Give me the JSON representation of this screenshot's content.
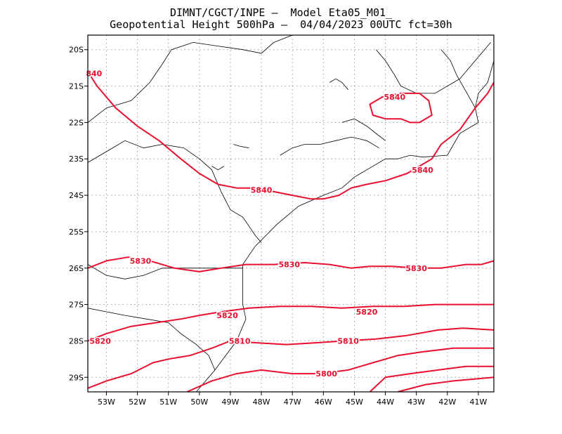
{
  "title": {
    "line1": "DIMNT/CGCT/INPE –  Model Eta05_M01_",
    "line2": "Geopotential Height 500hPa –  04/04/2023 00UTC fct=30h"
  },
  "colors": {
    "contour": "#e8102e",
    "coast": "#000000",
    "grid": "#9a9a9a",
    "frame": "#000000"
  },
  "map": {
    "lon_range": [
      -53.6,
      -40.5
    ],
    "lat_range": [
      -29.4,
      -19.6
    ],
    "lon_ticks": [
      {
        "value": -53,
        "label": "53W"
      },
      {
        "value": -52,
        "label": "52W"
      },
      {
        "value": -51,
        "label": "51W"
      },
      {
        "value": -50,
        "label": "50W"
      },
      {
        "value": -49,
        "label": "49W"
      },
      {
        "value": -48,
        "label": "48W"
      },
      {
        "value": -47,
        "label": "47W"
      },
      {
        "value": -46,
        "label": "46W"
      },
      {
        "value": -45,
        "label": "45W"
      },
      {
        "value": -44,
        "label": "44W"
      },
      {
        "value": -43,
        "label": "43W"
      },
      {
        "value": -42,
        "label": "42W"
      },
      {
        "value": -41,
        "label": "41W"
      }
    ],
    "lat_ticks": [
      {
        "value": -20,
        "label": "20S"
      },
      {
        "value": -21,
        "label": "21S"
      },
      {
        "value": -22,
        "label": "22S"
      },
      {
        "value": -23,
        "label": "23S"
      },
      {
        "value": -24,
        "label": "24S"
      },
      {
        "value": -25,
        "label": "25S"
      },
      {
        "value": -26,
        "label": "26S"
      },
      {
        "value": -27,
        "label": "27S"
      },
      {
        "value": -28,
        "label": "28S"
      },
      {
        "value": -29,
        "label": "29S"
      }
    ],
    "contours": [
      {
        "name": "5840",
        "points": [
          [
            -53.6,
            -20.6
          ],
          [
            -53.3,
            -21.0
          ],
          [
            -52.7,
            -21.6
          ],
          [
            -52.0,
            -22.1
          ],
          [
            -51.3,
            -22.5
          ],
          [
            -50.6,
            -23.0
          ],
          [
            -50.0,
            -23.4
          ],
          [
            -49.4,
            -23.7
          ],
          [
            -48.8,
            -23.8
          ],
          [
            -48.2,
            -23.8
          ],
          [
            -47.6,
            -23.9
          ],
          [
            -47.0,
            -24.0
          ],
          [
            -46.4,
            -24.1
          ],
          [
            -46.0,
            -24.1
          ],
          [
            -45.5,
            -24.0
          ],
          [
            -45.1,
            -23.8
          ],
          [
            -44.6,
            -23.7
          ],
          [
            -44.0,
            -23.6
          ],
          [
            -43.3,
            -23.4
          ],
          [
            -42.9,
            -23.2
          ],
          [
            -42.5,
            -23.0
          ],
          [
            -42.2,
            -22.6
          ],
          [
            -41.6,
            -22.2
          ],
          [
            -41.1,
            -21.6
          ],
          [
            -40.7,
            -21.2
          ],
          [
            -40.5,
            -20.9
          ]
        ]
      },
      {
        "name": "5840",
        "closed": true,
        "points": [
          [
            -44.5,
            -21.5
          ],
          [
            -44.1,
            -21.3
          ],
          [
            -43.5,
            -21.2
          ],
          [
            -42.9,
            -21.2
          ],
          [
            -42.6,
            -21.4
          ],
          [
            -42.5,
            -21.8
          ],
          [
            -42.9,
            -22.0
          ],
          [
            -43.2,
            -22.0
          ],
          [
            -43.5,
            -21.9
          ],
          [
            -44.0,
            -21.9
          ],
          [
            -44.4,
            -21.8
          ]
        ]
      },
      {
        "name": "5830",
        "points": [
          [
            -53.6,
            -26.0
          ],
          [
            -53.0,
            -25.8
          ],
          [
            -52.3,
            -25.7
          ],
          [
            -51.6,
            -25.8
          ],
          [
            -50.8,
            -26.0
          ],
          [
            -50.0,
            -26.1
          ],
          [
            -49.3,
            -26.0
          ],
          [
            -48.5,
            -25.9
          ],
          [
            -47.6,
            -25.9
          ],
          [
            -46.6,
            -25.85
          ],
          [
            -45.8,
            -25.9
          ],
          [
            -45.1,
            -26.0
          ],
          [
            -44.5,
            -25.95
          ],
          [
            -43.8,
            -25.95
          ],
          [
            -43.0,
            -26.0
          ],
          [
            -42.2,
            -26.0
          ],
          [
            -41.4,
            -25.9
          ],
          [
            -40.9,
            -25.9
          ],
          [
            -40.5,
            -25.8
          ]
        ]
      },
      {
        "name": "5820",
        "points": [
          [
            -53.6,
            -28.0
          ],
          [
            -53.0,
            -27.8
          ],
          [
            -52.2,
            -27.6
          ],
          [
            -51.4,
            -27.5
          ],
          [
            -50.6,
            -27.4
          ],
          [
            -50.0,
            -27.3
          ],
          [
            -49.3,
            -27.2
          ],
          [
            -48.4,
            -27.1
          ],
          [
            -47.4,
            -27.05
          ],
          [
            -46.4,
            -27.05
          ],
          [
            -45.4,
            -27.1
          ],
          [
            -44.4,
            -27.05
          ],
          [
            -43.4,
            -27.05
          ],
          [
            -42.4,
            -27.0
          ],
          [
            -41.4,
            -27.0
          ],
          [
            -40.5,
            -27.0
          ]
        ]
      },
      {
        "name": "5810",
        "points": [
          [
            -53.6,
            -29.3
          ],
          [
            -53.0,
            -29.1
          ],
          [
            -52.2,
            -28.9
          ],
          [
            -51.5,
            -28.6
          ],
          [
            -51.0,
            -28.5
          ],
          [
            -50.3,
            -28.4
          ],
          [
            -49.6,
            -28.2
          ],
          [
            -49.0,
            -28.0
          ],
          [
            -48.2,
            -28.05
          ],
          [
            -47.2,
            -28.1
          ],
          [
            -46.2,
            -28.05
          ],
          [
            -45.3,
            -28.0
          ],
          [
            -44.3,
            -27.95
          ],
          [
            -43.3,
            -27.85
          ],
          [
            -42.3,
            -27.7
          ],
          [
            -41.5,
            -27.65
          ],
          [
            -40.5,
            -27.7
          ]
        ]
      },
      {
        "name": "5800",
        "points": [
          [
            -50.4,
            -29.4
          ],
          [
            -49.6,
            -29.1
          ],
          [
            -48.8,
            -28.9
          ],
          [
            -48.0,
            -28.8
          ],
          [
            -47.0,
            -28.9
          ],
          [
            -46.1,
            -28.9
          ],
          [
            -45.2,
            -28.8
          ],
          [
            -44.4,
            -28.6
          ],
          [
            -43.6,
            -28.4
          ],
          [
            -42.8,
            -28.3
          ],
          [
            -41.8,
            -28.2
          ],
          [
            -40.5,
            -28.2
          ]
        ]
      },
      {
        "name": "",
        "points": [
          [
            -44.5,
            -29.4
          ],
          [
            -44.0,
            -29.0
          ],
          [
            -43.2,
            -28.9
          ],
          [
            -42.3,
            -28.8
          ],
          [
            -41.4,
            -28.7
          ],
          [
            -40.5,
            -28.7
          ]
        ]
      },
      {
        "name": "",
        "points": [
          [
            -43.6,
            -29.4
          ],
          [
            -42.7,
            -29.2
          ],
          [
            -41.8,
            -29.1
          ],
          [
            -40.5,
            -29.0
          ]
        ]
      }
    ],
    "contour_labels": [
      {
        "text": "840",
        "lon": -53.4,
        "lat": -20.65
      },
      {
        "text": "5840",
        "lon": -48.0,
        "lat": -23.85
      },
      {
        "text": "5840",
        "lon": -43.7,
        "lat": -21.3
      },
      {
        "text": "5840",
        "lon": -42.8,
        "lat": -23.3
      },
      {
        "text": "5830",
        "lon": -51.9,
        "lat": -25.8
      },
      {
        "text": "5830",
        "lon": -47.1,
        "lat": -25.9
      },
      {
        "text": "5830",
        "lon": -43.0,
        "lat": -26.0
      },
      {
        "text": "5820",
        "lon": -49.1,
        "lat": -27.3
      },
      {
        "text": "5820",
        "lon": -44.6,
        "lat": -27.2
      },
      {
        "text": "5820",
        "lon": -53.2,
        "lat": -28.0
      },
      {
        "text": "5810",
        "lon": -48.7,
        "lat": -28.0
      },
      {
        "text": "5810",
        "lon": -45.2,
        "lat": -28.0
      },
      {
        "text": "5800",
        "lon": -45.9,
        "lat": -28.9
      }
    ],
    "coastlines": [
      [
        [
          -40.5,
          -20.3
        ],
        [
          -40.7,
          -20.9
        ],
        [
          -41.0,
          -21.2
        ],
        [
          -41.1,
          -21.6
        ],
        [
          -41.0,
          -22.0
        ],
        [
          -41.6,
          -22.3
        ],
        [
          -42.0,
          -22.9
        ],
        [
          -42.8,
          -22.95
        ],
        [
          -43.2,
          -22.9
        ],
        [
          -43.6,
          -23.0
        ],
        [
          -44.0,
          -23.0
        ],
        [
          -44.6,
          -23.3
        ],
        [
          -45.0,
          -23.5
        ],
        [
          -45.4,
          -23.8
        ],
        [
          -46.0,
          -24.0
        ],
        [
          -46.8,
          -24.3
        ],
        [
          -47.5,
          -24.8
        ],
        [
          -48.2,
          -25.4
        ],
        [
          -48.6,
          -25.9
        ],
        [
          -48.6,
          -26.4
        ],
        [
          -48.6,
          -27.0
        ],
        [
          -48.5,
          -27.4
        ],
        [
          -48.8,
          -28.0
        ],
        [
          -49.5,
          -28.8
        ],
        [
          -50.1,
          -29.4
        ]
      ],
      [
        [
          -53.6,
          -22.0
        ],
        [
          -53.0,
          -21.6
        ],
        [
          -52.2,
          -21.4
        ],
        [
          -51.6,
          -20.9
        ],
        [
          -51.2,
          -20.4
        ],
        [
          -50.9,
          -20.0
        ],
        [
          -50.2,
          -19.8
        ],
        [
          -49.4,
          -19.9
        ],
        [
          -48.6,
          -20.0
        ],
        [
          -48.0,
          -20.1
        ],
        [
          -47.6,
          -19.8
        ],
        [
          -47.0,
          -19.6
        ]
      ],
      [
        [
          -53.6,
          -23.1
        ],
        [
          -53.0,
          -22.8
        ],
        [
          -52.4,
          -22.5
        ],
        [
          -51.8,
          -22.7
        ],
        [
          -51.2,
          -22.6
        ],
        [
          -50.5,
          -22.7
        ],
        [
          -50.0,
          -23.0
        ],
        [
          -49.6,
          -23.3
        ],
        [
          -49.3,
          -23.9
        ],
        [
          -49.0,
          -24.4
        ],
        [
          -48.6,
          -24.6
        ],
        [
          -48.2,
          -25.1
        ],
        [
          -48.0,
          -25.3
        ]
      ],
      [
        [
          -53.6,
          -25.9
        ],
        [
          -53.0,
          -26.2
        ],
        [
          -52.4,
          -26.3
        ],
        [
          -51.8,
          -26.2
        ],
        [
          -51.2,
          -26.0
        ],
        [
          -50.5,
          -26.0
        ],
        [
          -50.0,
          -26.0
        ],
        [
          -49.5,
          -26.0
        ],
        [
          -49.0,
          -26.0
        ],
        [
          -48.6,
          -26.0
        ]
      ],
      [
        [
          -53.6,
          -27.1
        ],
        [
          -53.0,
          -27.2
        ],
        [
          -52.4,
          -27.3
        ],
        [
          -51.7,
          -27.4
        ],
        [
          -51.0,
          -27.5
        ],
        [
          -50.6,
          -27.8
        ],
        [
          -50.1,
          -28.1
        ],
        [
          -49.7,
          -28.4
        ],
        [
          -49.5,
          -28.8
        ]
      ],
      [
        [
          -47.4,
          -22.9
        ],
        [
          -47.0,
          -22.7
        ],
        [
          -46.6,
          -22.6
        ],
        [
          -46.1,
          -22.6
        ],
        [
          -45.6,
          -22.5
        ],
        [
          -45.1,
          -22.4
        ],
        [
          -44.6,
          -22.5
        ],
        [
          -44.2,
          -22.7
        ]
      ],
      [
        [
          -45.4,
          -22.0
        ],
        [
          -45.0,
          -21.9
        ],
        [
          -44.6,
          -22.1
        ],
        [
          -44.3,
          -22.3
        ],
        [
          -44.0,
          -22.5
        ]
      ],
      [
        [
          -44.3,
          -20.0
        ],
        [
          -44.0,
          -20.3
        ],
        [
          -43.7,
          -20.7
        ],
        [
          -43.5,
          -21.0
        ],
        [
          -43.0,
          -21.2
        ],
        [
          -42.4,
          -21.2
        ],
        [
          -42.0,
          -21.0
        ],
        [
          -41.6,
          -20.8
        ],
        [
          -41.3,
          -20.5
        ],
        [
          -41.0,
          -20.2
        ],
        [
          -40.6,
          -19.8
        ]
      ],
      [
        [
          -42.2,
          -20.0
        ],
        [
          -41.9,
          -20.3
        ],
        [
          -41.7,
          -20.7
        ],
        [
          -41.5,
          -21.0
        ],
        [
          -41.3,
          -21.3
        ],
        [
          -41.1,
          -21.6
        ]
      ],
      [
        [
          -45.8,
          -20.9
        ],
        [
          -45.6,
          -20.8
        ],
        [
          -45.4,
          -20.9
        ],
        [
          -45.2,
          -21.1
        ]
      ],
      [
        [
          -48.9,
          -22.6
        ],
        [
          -48.7,
          -22.65
        ],
        [
          -48.4,
          -22.7
        ]
      ],
      [
        [
          -49.6,
          -23.2
        ],
        [
          -49.4,
          -23.3
        ],
        [
          -49.2,
          -23.2
        ]
      ]
    ]
  }
}
